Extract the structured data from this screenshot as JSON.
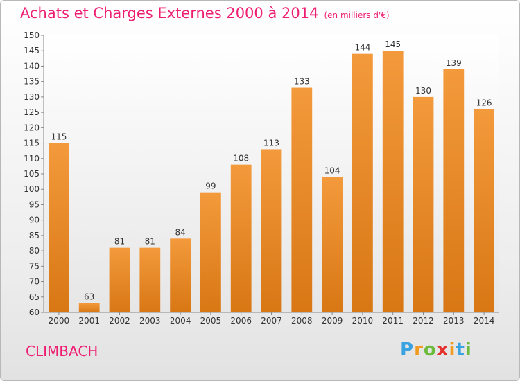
{
  "title": "Achats et Charges Externes 2000 à 2014",
  "subtitle": "(en milliers d'€)",
  "city": "CLIMBACH",
  "logo": "Proxiti",
  "colors": {
    "bar": "#f39a3c",
    "bar_dark": "#d87714",
    "title": "#ee1f73"
  },
  "chart_data": {
    "type": "bar",
    "title": "Achats et Charges Externes 2000 à 2014",
    "subtitle": "(en milliers d'€)",
    "categories": [
      "2000",
      "2001",
      "2002",
      "2003",
      "2004",
      "2005",
      "2006",
      "2007",
      "2008",
      "2009",
      "2010",
      "2011",
      "2012",
      "2013",
      "2014"
    ],
    "values": [
      115,
      63,
      81,
      81,
      84,
      99,
      108,
      113,
      133,
      104,
      144,
      145,
      130,
      139,
      126
    ],
    "ylim": [
      60,
      150
    ],
    "ytick_step": 5,
    "grid": false,
    "data_labels": true
  }
}
